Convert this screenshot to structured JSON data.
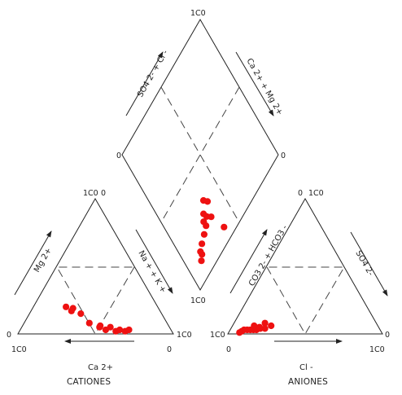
{
  "chart_data": {
    "type": "scatter",
    "diagram": "piper",
    "marker_color": "#ee1111",
    "left_triangle": {
      "title": "CATIONES",
      "bottom_axis_label": "Ca 2+",
      "left_edge_label": "Mg 2+",
      "right_edge_label": "Na + + K +",
      "corner_ticks": {
        "apex": "1C0",
        "bottom_left": "0",
        "bottom_right": "1C0",
        "below_left": "1C0",
        "below_right": "0",
        "apex_right": "0"
      },
      "points_ca_mg": [
        [
          0.59,
          0.2
        ],
        [
          0.55,
          0.19
        ],
        [
          0.57,
          0.17
        ],
        [
          0.52,
          0.15
        ],
        [
          0.5,
          0.08
        ],
        [
          0.44,
          0.06
        ],
        [
          0.45,
          0.05
        ],
        [
          0.42,
          0.03
        ],
        [
          0.38,
          0.05
        ],
        [
          0.36,
          0.02
        ],
        [
          0.33,
          0.03
        ],
        [
          0.3,
          0.02
        ],
        [
          0.27,
          0.03
        ]
      ]
    },
    "right_triangle": {
      "title": "ANIONES",
      "bottom_axis_label": "Cl -",
      "left_edge_label": "CO3 2- + HCO3 -",
      "right_edge_label": "SO4 2-",
      "corner_ticks": {
        "apex": "1C0",
        "apex_left": "0",
        "bottom_left": "1C0",
        "bottom_right": "0",
        "below_left": "0",
        "below_right": "1C0"
      },
      "points_cl_so4": [
        [
          0.08,
          0.02
        ],
        [
          0.09,
          0.03
        ],
        [
          0.11,
          0.03
        ],
        [
          0.13,
          0.03
        ],
        [
          0.15,
          0.03
        ],
        [
          0.17,
          0.03
        ],
        [
          0.19,
          0.04
        ],
        [
          0.22,
          0.04
        ],
        [
          0.18,
          0.05
        ],
        [
          0.14,
          0.06
        ],
        [
          0.25,
          0.06
        ],
        [
          0.2,
          0.08
        ],
        [
          0.07,
          0.01
        ]
      ]
    },
    "diamond": {
      "upper_left_label": "SO4 2- + Cl -",
      "upper_right_label": "Ca 2+ + Mg 2+",
      "corner_ticks": {
        "top": "1C0",
        "left": "0",
        "right": "0",
        "bottom": "1C0"
      }
    }
  }
}
